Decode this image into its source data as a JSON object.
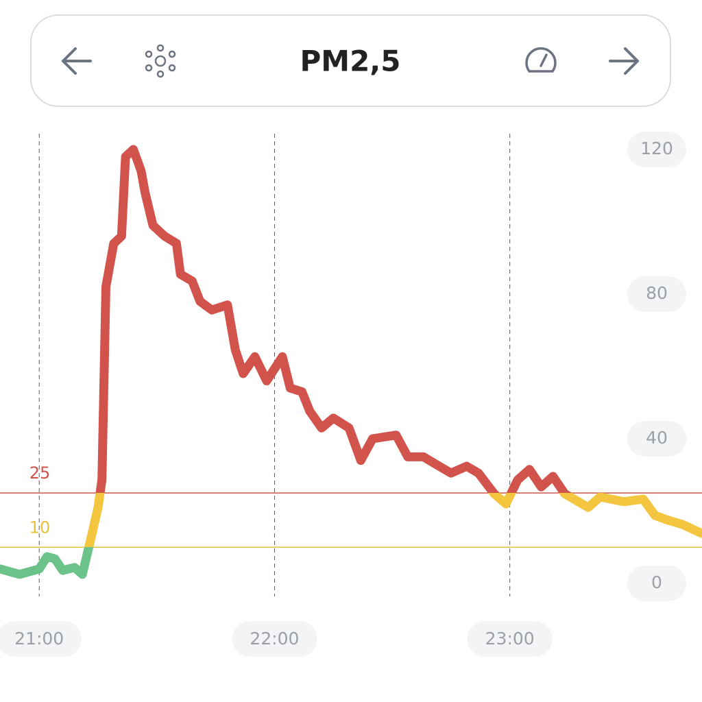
{
  "header": {
    "title": "PM2,5"
  },
  "chart_data": {
    "type": "line",
    "series": [
      {
        "name": "PM2,5",
        "colors": [
          "#6cc38a",
          "#f4c53f",
          "#d1534c"
        ],
        "x": [
          "20:50",
          "20:55",
          "21:00",
          "21:02",
          "21:04",
          "21:06",
          "21:09",
          "21:11",
          "21:13",
          "21:15",
          "21:16",
          "21:17",
          "21:19",
          "21:21",
          "21:22",
          "21:24",
          "21:26",
          "21:27",
          "21:29",
          "21:32",
          "21:35",
          "21:36",
          "21:39",
          "21:41",
          "21:44",
          "21:48",
          "21:50",
          "21:52",
          "21:55",
          "21:58",
          "22:02",
          "22:04",
          "22:07",
          "22:09",
          "22:12",
          "22:15",
          "22:19",
          "22:22",
          "22:25",
          "22:31",
          "22:34",
          "22:38",
          "22:42",
          "22:45",
          "22:49",
          "22:52",
          "22:56",
          "22:59",
          "23:02",
          "23:05",
          "23:08",
          "23:11",
          "23:14",
          "23:20",
          "23:23",
          "23:29",
          "23:34",
          "23:37",
          "23:40",
          "23:44",
          "23:49"
        ],
        "values": [
          4,
          2.5,
          4,
          7.4,
          6.8,
          3.6,
          4.4,
          2.5,
          11.6,
          21,
          28.6,
          82,
          94,
          96,
          118,
          120,
          114,
          108,
          99,
          96,
          94,
          85.5,
          83.6,
          78,
          75.6,
          77,
          64.6,
          58,
          62.7,
          56,
          62.7,
          54,
          53,
          47.6,
          43,
          45.7,
          43,
          34,
          40,
          41,
          35,
          35,
          32.4,
          30.5,
          32.4,
          30.5,
          24.8,
          22,
          28.6,
          31.5,
          26.7,
          29.6,
          24.8,
          21,
          23.9,
          22.6,
          23.3,
          18.8,
          17.6,
          16.3,
          13.8
        ]
      }
    ],
    "thresholds": [
      {
        "value": 25,
        "color": "#d1534c"
      },
      {
        "value": 10,
        "color": "#e6c23a"
      }
    ],
    "xlim": [
      "20:50",
      "23:49"
    ],
    "xticks": [
      "21:00",
      "22:00",
      "23:00"
    ],
    "ylim": [
      0,
      120
    ],
    "yticks": [
      0,
      40,
      80,
      120
    ],
    "grid": true
  }
}
